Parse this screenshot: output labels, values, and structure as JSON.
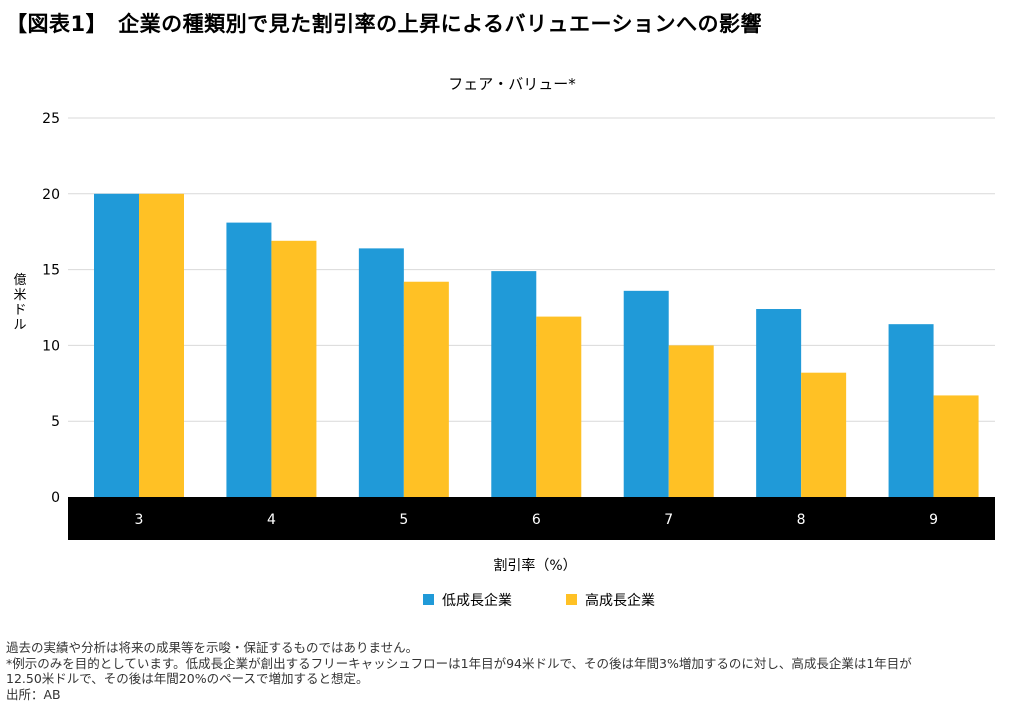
{
  "page_title": "【図表1】　企業の種類別で見た割引率の上昇によるバリュエーションへの影響",
  "colors": {
    "low_growth": "#209ad8",
    "high_growth": "#ffc125",
    "axis_band": "#000000",
    "grid": "#d9d9d9"
  },
  "chart_data": {
    "type": "bar",
    "title": "フェア・バリュー*",
    "xlabel": "割引率（%）",
    "ylabel": "億米ドル",
    "categories": [
      "3",
      "4",
      "5",
      "6",
      "7",
      "8",
      "9"
    ],
    "ylim": [
      0,
      25
    ],
    "yticks": [
      "0",
      "5",
      "10",
      "15",
      "20",
      "25"
    ],
    "grid": true,
    "legend_position": "bottom",
    "series": [
      {
        "name": "低成長企業",
        "values": [
          20.0,
          18.1,
          16.4,
          14.9,
          13.6,
          12.4,
          11.4
        ]
      },
      {
        "name": "高成長企業",
        "values": [
          20.0,
          16.9,
          14.2,
          11.9,
          10.0,
          8.2,
          6.7
        ]
      }
    ]
  },
  "footnotes": [
    "過去の実績や分析は将来の成果等を示唆・保証するものではありません。",
    "*例示のみを目的としています。低成長企業が創出するフリーキャッシュフローは1年目が94米ドルで、その後は年間3%増加するのに対し、高成長企業は1年目が",
    "12.50米ドルで、その後は年間20%のペースで増加すると想定。",
    "出所：AB"
  ]
}
